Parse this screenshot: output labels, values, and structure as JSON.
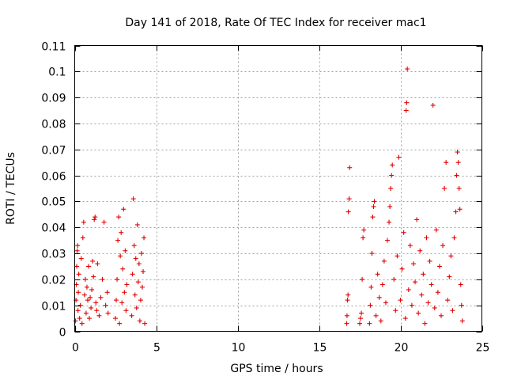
{
  "chart_data": {
    "type": "scatter",
    "title": "Day 141 of 2018, Rate Of TEC Index for receiver mac1",
    "xlabel": "GPS time / hours",
    "ylabel": "ROTI / TECUs",
    "xlim": [
      0,
      25
    ],
    "ylim": [
      0,
      0.11
    ],
    "xticks": [
      "0",
      "5",
      "10",
      "15",
      "20",
      "25"
    ],
    "yticks": [
      "0",
      "0.01",
      "0.02",
      "0.03",
      "0.04",
      "0.05",
      "0.06",
      "0.07",
      "0.08",
      "0.09",
      "0.1",
      "0.11"
    ],
    "grid": true,
    "marker": "+",
    "color": "#e00000",
    "series": [
      {
        "name": "ROTI",
        "points": [
          [
            0.05,
            0.004
          ],
          [
            0.08,
            0.012
          ],
          [
            0.1,
            0.018
          ],
          [
            0.12,
            0.025
          ],
          [
            0.15,
            0.031
          ],
          [
            0.18,
            0.033
          ],
          [
            0.2,
            0.008
          ],
          [
            0.22,
            0.015
          ],
          [
            0.25,
            0.022
          ],
          [
            0.3,
            0.005
          ],
          [
            0.35,
            0.01
          ],
          [
            0.4,
            0.028
          ],
          [
            0.45,
            0.003
          ],
          [
            0.5,
            0.036
          ],
          [
            0.55,
            0.042
          ],
          [
            0.6,
            0.014
          ],
          [
            0.65,
            0.02
          ],
          [
            0.7,
            0.007
          ],
          [
            0.75,
            0.017
          ],
          [
            0.8,
            0.012
          ],
          [
            0.85,
            0.025
          ],
          [
            0.9,
            0.005
          ],
          [
            0.95,
            0.013
          ],
          [
            1.0,
            0.009
          ],
          [
            1.05,
            0.016
          ],
          [
            1.1,
            0.027
          ],
          [
            1.15,
            0.021
          ],
          [
            1.2,
            0.043
          ],
          [
            1.25,
            0.044
          ],
          [
            1.3,
            0.011
          ],
          [
            1.35,
            0.008
          ],
          [
            1.4,
            0.026
          ],
          [
            1.5,
            0.006
          ],
          [
            1.6,
            0.013
          ],
          [
            1.7,
            0.02
          ],
          [
            1.8,
            0.042
          ],
          [
            1.9,
            0.01
          ],
          [
            2.0,
            0.015
          ],
          [
            2.05,
            0.007
          ],
          [
            2.5,
            0.005
          ],
          [
            2.55,
            0.012
          ],
          [
            2.6,
            0.02
          ],
          [
            2.65,
            0.035
          ],
          [
            2.7,
            0.044
          ],
          [
            2.75,
            0.003
          ],
          [
            2.8,
            0.029
          ],
          [
            2.85,
            0.038
          ],
          [
            2.9,
            0.011
          ],
          [
            2.95,
            0.024
          ],
          [
            3.0,
            0.047
          ],
          [
            3.05,
            0.015
          ],
          [
            3.1,
            0.031
          ],
          [
            3.15,
            0.008
          ],
          [
            3.2,
            0.018
          ],
          [
            3.5,
            0.006
          ],
          [
            3.55,
            0.022
          ],
          [
            3.6,
            0.051
          ],
          [
            3.65,
            0.033
          ],
          [
            3.7,
            0.014
          ],
          [
            3.75,
            0.028
          ],
          [
            3.8,
            0.009
          ],
          [
            3.85,
            0.041
          ],
          [
            3.9,
            0.019
          ],
          [
            3.95,
            0.026
          ],
          [
            4.0,
            0.004
          ],
          [
            4.05,
            0.012
          ],
          [
            4.1,
            0.03
          ],
          [
            4.15,
            0.017
          ],
          [
            4.2,
            0.023
          ],
          [
            4.25,
            0.036
          ],
          [
            4.3,
            0.003
          ],
          [
            16.7,
            0.003
          ],
          [
            16.72,
            0.006
          ],
          [
            16.75,
            0.012
          ],
          [
            16.78,
            0.014
          ],
          [
            16.8,
            0.046
          ],
          [
            16.85,
            0.051
          ],
          [
            16.88,
            0.063
          ],
          [
            17.5,
            0.003
          ],
          [
            17.55,
            0.005
          ],
          [
            17.6,
            0.007
          ],
          [
            17.65,
            0.02
          ],
          [
            17.7,
            0.036
          ],
          [
            17.75,
            0.039
          ],
          [
            18.1,
            0.003
          ],
          [
            18.15,
            0.01
          ],
          [
            18.2,
            0.017
          ],
          [
            18.25,
            0.03
          ],
          [
            18.3,
            0.044
          ],
          [
            18.35,
            0.048
          ],
          [
            18.4,
            0.05
          ],
          [
            18.5,
            0.006
          ],
          [
            18.6,
            0.022
          ],
          [
            18.7,
            0.013
          ],
          [
            18.8,
            0.004
          ],
          [
            18.9,
            0.018
          ],
          [
            19.0,
            0.027
          ],
          [
            19.1,
            0.011
          ],
          [
            19.2,
            0.035
          ],
          [
            19.3,
            0.042
          ],
          [
            19.35,
            0.048
          ],
          [
            19.4,
            0.055
          ],
          [
            19.45,
            0.06
          ],
          [
            19.5,
            0.064
          ],
          [
            19.6,
            0.02
          ],
          [
            19.7,
            0.008
          ],
          [
            19.8,
            0.029
          ],
          [
            19.9,
            0.067
          ],
          [
            20.0,
            0.012
          ],
          [
            20.1,
            0.024
          ],
          [
            20.2,
            0.038
          ],
          [
            20.3,
            0.005
          ],
          [
            20.35,
            0.085
          ],
          [
            20.38,
            0.088
          ],
          [
            20.42,
            0.101
          ],
          [
            20.5,
            0.016
          ],
          [
            20.6,
            0.033
          ],
          [
            20.7,
            0.01
          ],
          [
            20.8,
            0.026
          ],
          [
            20.9,
            0.019
          ],
          [
            21.0,
            0.043
          ],
          [
            21.1,
            0.007
          ],
          [
            21.2,
            0.031
          ],
          [
            21.3,
            0.014
          ],
          [
            21.4,
            0.022
          ],
          [
            21.5,
            0.003
          ],
          [
            21.6,
            0.036
          ],
          [
            21.7,
            0.011
          ],
          [
            21.8,
            0.027
          ],
          [
            21.9,
            0.018
          ],
          [
            22.0,
            0.087
          ],
          [
            22.1,
            0.009
          ],
          [
            22.2,
            0.039
          ],
          [
            22.3,
            0.015
          ],
          [
            22.4,
            0.025
          ],
          [
            22.5,
            0.006
          ],
          [
            22.6,
            0.033
          ],
          [
            22.7,
            0.055
          ],
          [
            22.8,
            0.065
          ],
          [
            22.9,
            0.012
          ],
          [
            23.0,
            0.021
          ],
          [
            23.1,
            0.029
          ],
          [
            23.2,
            0.008
          ],
          [
            23.3,
            0.036
          ],
          [
            23.4,
            0.046
          ],
          [
            23.45,
            0.06
          ],
          [
            23.5,
            0.069
          ],
          [
            23.55,
            0.065
          ],
          [
            23.6,
            0.055
          ],
          [
            23.65,
            0.047
          ],
          [
            23.7,
            0.018
          ],
          [
            23.75,
            0.01
          ],
          [
            23.8,
            0.004
          ]
        ]
      }
    ]
  }
}
